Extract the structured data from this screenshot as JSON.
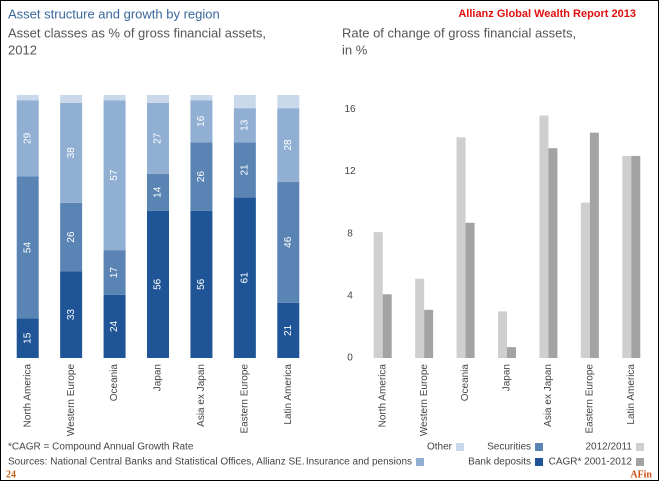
{
  "header": {
    "title": "Asset structure and growth by region",
    "report": "Allianz Global Wealth Report 2013"
  },
  "chart_data": [
    {
      "type": "stacked_bar",
      "subtitle": [
        "Asset classes as % of gross financial assets,",
        "2012"
      ],
      "categories": [
        "North America",
        "Western Europe",
        "Oceania",
        "Japan",
        "Asia ex Japan",
        "Eastern Europe",
        "Latin America"
      ],
      "series": [
        {
          "name": "Bank deposits",
          "color": "#1f5596",
          "values": [
            15,
            33,
            24,
            56,
            56,
            61,
            21
          ]
        },
        {
          "name": "Securities",
          "color": "#5a84b4",
          "values": [
            54,
            26,
            17,
            14,
            26,
            21,
            46
          ]
        },
        {
          "name": "Insurance and pensions",
          "color": "#90afd3",
          "values": [
            29,
            38,
            57,
            27,
            16,
            13,
            28
          ]
        },
        {
          "name": "Other",
          "color": "#c9d8eb",
          "values": [
            2,
            3,
            2,
            3,
            2,
            5,
            5
          ]
        }
      ]
    },
    {
      "type": "bar",
      "subtitle": [
        "Rate of change of gross financial assets,",
        "in %"
      ],
      "categories": [
        "North America",
        "Western Europe",
        "Oceania",
        "Japan",
        "Asia ex Japan",
        "Eastern Europe",
        "Latin America"
      ],
      "series": [
        {
          "name": "2012/2011",
          "color": "#cfcfcf",
          "values": [
            8.1,
            5.1,
            14.2,
            3.0,
            15.6,
            10.0,
            13.0
          ]
        },
        {
          "name": "CAGR* 2001-2012",
          "color": "#a3a3a3",
          "values": [
            4.1,
            3.1,
            8.7,
            0.7,
            13.5,
            14.5,
            13.0
          ]
        }
      ],
      "ylim": [
        0,
        16.6
      ],
      "yticks": [
        0,
        4,
        8,
        12,
        16
      ],
      "grid": false
    }
  ],
  "footer": {
    "note": "*CAGR = Compound Annual Growth Rate",
    "sources": "Sources: National Central Banks and Statistical Offices, Allianz SE.",
    "page": "24",
    "brand": "AFin"
  }
}
